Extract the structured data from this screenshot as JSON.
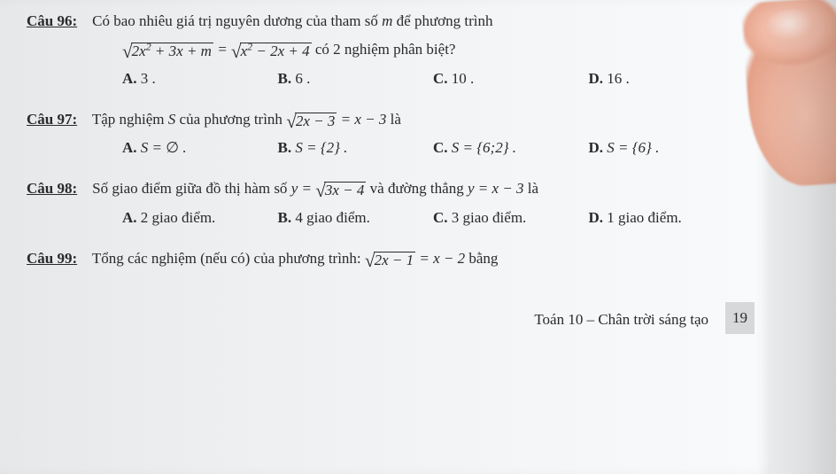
{
  "questions": [
    {
      "label": "Câu 96:",
      "stem_pre": "Có bao nhiêu giá trị nguyên dương của tham số ",
      "stem_var": "m",
      "stem_post": " để phương trình",
      "line2_tail": " có 2 nghiệm phân biệt?",
      "opts": {
        "A": "3 .",
        "B": "6 .",
        "C": "10 .",
        "D": "16 ."
      }
    },
    {
      "label": "Câu 97:",
      "stem": "Tập nghiệm ",
      "stem_var": "S",
      "stem_mid": " của phương trình ",
      "stem_tail": " là",
      "optA_pre": "S = ",
      "optA_sym": "∅",
      "optA_post": " .",
      "optB": "S = {2} .",
      "optC": "S = {6;2} .",
      "optD": "S = {6} ."
    },
    {
      "label": "Câu 98:",
      "stem_pre": "Số giao điểm giữa đồ thị hàm số ",
      "stem_mid": " và đường thẳng ",
      "stem_tail": " là",
      "opts": {
        "A": "2 giao điểm.",
        "B": "4 giao điểm.",
        "C": "3 giao điểm.",
        "D": "1 giao điểm."
      }
    },
    {
      "label": "Câu 99:",
      "stem_pre": "Tổng các nghiệm (nếu có) của phương trình: ",
      "stem_tail": " bằng"
    }
  ],
  "eq96_lhs_inner": "2x",
  "eq96_lhs_sup": "2",
  "eq96_lhs_rest": " + 3x + m",
  "eq96_eq": " = ",
  "eq96_rhs_inner": "x",
  "eq96_rhs_sup": "2",
  "eq96_rhs_rest": " − 2x + 4",
  "eq97_inner": "2x − 3",
  "eq97_rhs": " = x − 3",
  "eq98_y": "y = ",
  "eq98_inner": "3x − 4",
  "eq98_line": "y = x − 3",
  "eq99_inner": "2x − 1",
  "eq99_rhs": " = x − 2",
  "footer": "Toán 10 – Chân trời sáng tạo",
  "pagenum": "19",
  "opt_labels": {
    "A": "A.",
    "B": "B.",
    "C": "C.",
    "D": "D."
  }
}
